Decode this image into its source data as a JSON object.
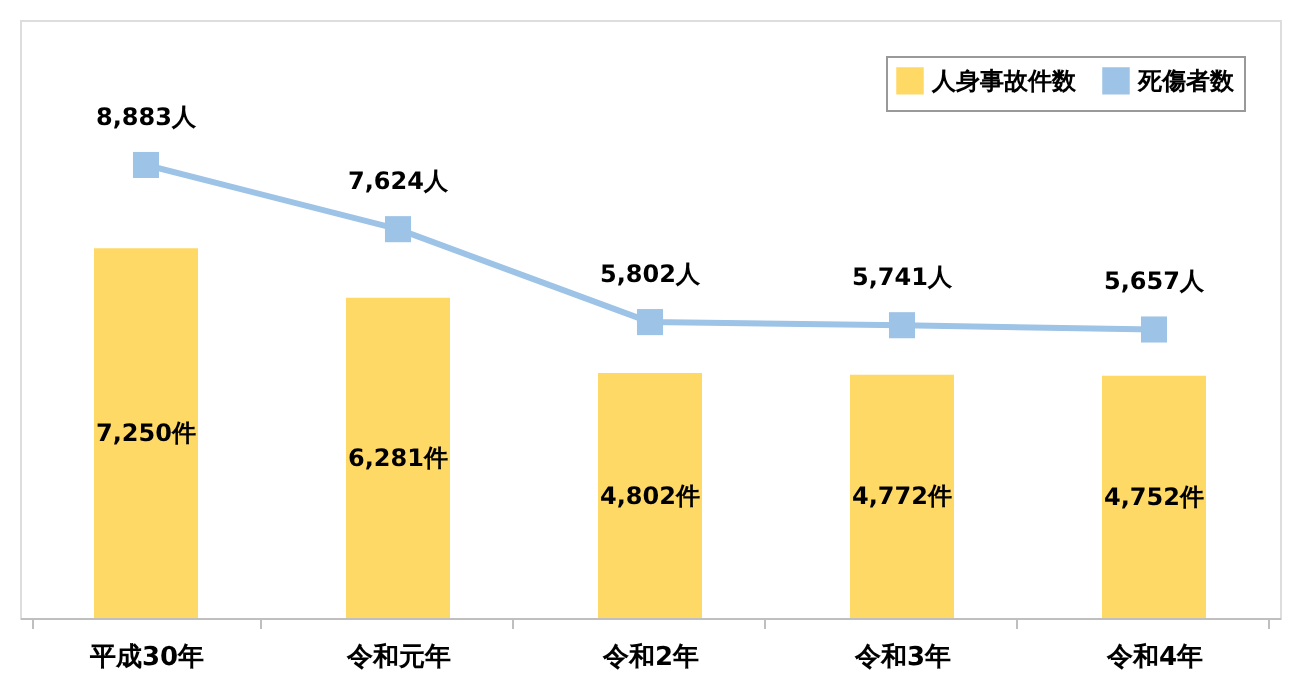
{
  "chart_data": {
    "type": "bar",
    "categories": [
      "平成30年",
      "令和元年",
      "令和2年",
      "令和3年",
      "令和4年"
    ],
    "series": [
      {
        "name": "人身事故件数",
        "color": "#ffd966",
        "values": [
          7250,
          6281,
          4802,
          4772,
          4752
        ],
        "value_labels": [
          "7,250件",
          "6,281件",
          "4,802件",
          "4,772件",
          "4,752件"
        ]
      },
      {
        "name": "死傷者数",
        "type": "line",
        "color": "#9dc3e6",
        "marker": "square",
        "values": [
          8883,
          7624,
          5802,
          5741,
          5657
        ],
        "value_labels": [
          "8,883人",
          "7,624人",
          "5,802人",
          "5,741人",
          "5,657人"
        ]
      }
    ],
    "legend": "top right",
    "grid": false,
    "tick_labels": "x"
  }
}
